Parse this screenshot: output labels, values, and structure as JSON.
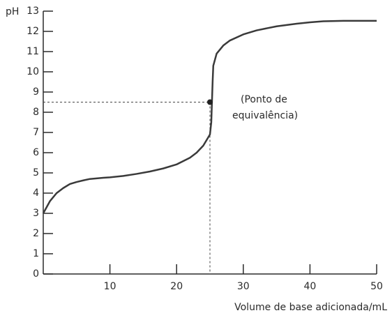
{
  "chart_data": {
    "type": "line",
    "y_label": "pH",
    "x_label": "Volume de base adicionada/mL",
    "annotation": [
      "(Ponto de",
      "equivalência)"
    ],
    "x": [
      0,
      1,
      2,
      3,
      4,
      5,
      6,
      7,
      8,
      9,
      10,
      12,
      14,
      16,
      18,
      20,
      22,
      23,
      24,
      25,
      25.2,
      25.3,
      25.4,
      25.5,
      26,
      27,
      28,
      30,
      32,
      35,
      38,
      40,
      42,
      45,
      50
    ],
    "values": [
      3.0,
      3.6,
      4.0,
      4.25,
      4.45,
      4.55,
      4.63,
      4.7,
      4.73,
      4.76,
      4.78,
      4.85,
      4.95,
      5.07,
      5.22,
      5.42,
      5.75,
      6.0,
      6.35,
      6.9,
      7.5,
      8.5,
      9.5,
      10.3,
      10.9,
      11.3,
      11.55,
      11.85,
      12.05,
      12.25,
      12.38,
      12.45,
      12.5,
      12.52,
      12.52
    ],
    "color": "#3a3a3a",
    "equivalence_point": {
      "x": 25,
      "y": 8.5
    },
    "xlim": [
      0,
      50
    ],
    "xticks": [
      10,
      20,
      30,
      40,
      50
    ],
    "ylim": [
      0,
      13
    ],
    "yticks": [
      0,
      1,
      2,
      3,
      4,
      5,
      6,
      7,
      8,
      9,
      10,
      11,
      12,
      13
    ]
  }
}
